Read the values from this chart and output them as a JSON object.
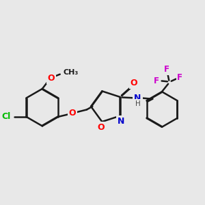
{
  "background_color": "#e8e8e8",
  "bond_color": "#1a1a1a",
  "bond_width": 1.8,
  "dbo": 0.022,
  "atom_colors": {
    "O": "#ff0000",
    "N": "#0000cc",
    "Cl": "#00bb00",
    "F": "#cc00cc",
    "C": "#1a1a1a",
    "H": "#444444"
  },
  "fs": 9.0
}
